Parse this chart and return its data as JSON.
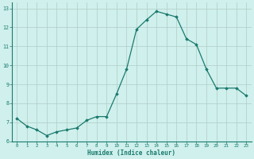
{
  "x": [
    0,
    1,
    2,
    3,
    4,
    5,
    6,
    7,
    8,
    9,
    10,
    11,
    12,
    13,
    14,
    15,
    16,
    17,
    18,
    19,
    20,
    21,
    22,
    23
  ],
  "y": [
    7.2,
    6.8,
    6.6,
    6.3,
    6.5,
    6.6,
    6.7,
    7.1,
    7.3,
    7.3,
    8.5,
    9.8,
    11.9,
    12.4,
    12.85,
    12.7,
    12.55,
    11.4,
    11.1,
    9.8,
    8.8,
    8.8,
    8.8,
    8.4
  ],
  "xlim": [
    -0.5,
    23.5
  ],
  "ylim": [
    6.0,
    13.3
  ],
  "yticks": [
    6,
    7,
    8,
    9,
    10,
    11,
    12,
    13
  ],
  "xtick_labels": [
    "0",
    "1",
    "2",
    "3",
    "4",
    "5",
    "6",
    "7",
    "8",
    "9",
    "10",
    "11",
    "12",
    "13",
    "14",
    "15",
    "16",
    "17",
    "18",
    "19",
    "20",
    "21",
    "22",
    "23"
  ],
  "xlabel": "Humidex (Indice chaleur)",
  "line_color": "#1a7a6e",
  "marker_color": "#1a7a6e",
  "bg_color": "#cff0ec",
  "grid_color": "#b0ccc8",
  "tick_label_color": "#1a7a6e",
  "xlabel_color": "#1a7a6e",
  "spine_color": "#1a7a6e"
}
